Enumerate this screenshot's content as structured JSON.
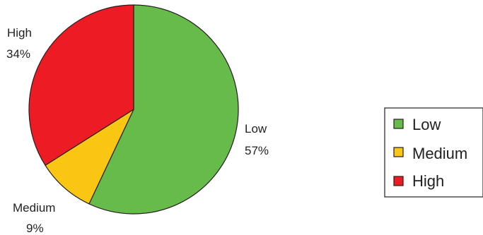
{
  "chart_data": {
    "type": "pie",
    "title": "",
    "start_angle_deg": 0,
    "direction": "clockwise",
    "slices": [
      {
        "label": "Low",
        "value": 57,
        "pct_label": "57%",
        "color": "#66bb4a"
      },
      {
        "label": "Medium",
        "value": 9,
        "pct_label": "9%",
        "color": "#f9c614"
      },
      {
        "label": "High",
        "value": 34,
        "pct_label": "34%",
        "color": "#ed1c24"
      }
    ],
    "legend": {
      "placement": "right",
      "entries": [
        "Low",
        "Medium",
        "High"
      ]
    }
  }
}
